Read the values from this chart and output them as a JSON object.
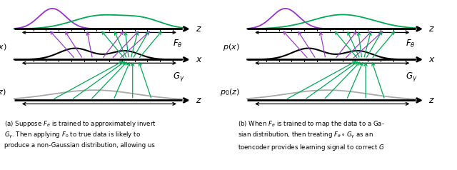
{
  "fig_width": 6.4,
  "fig_height": 2.38,
  "dpi": 100,
  "bg_color": "#ffffff",
  "green_color": "#00aa55",
  "purple_color": "#9933cc",
  "gray_color": "#aaaaaa",
  "black_color": "#000000"
}
